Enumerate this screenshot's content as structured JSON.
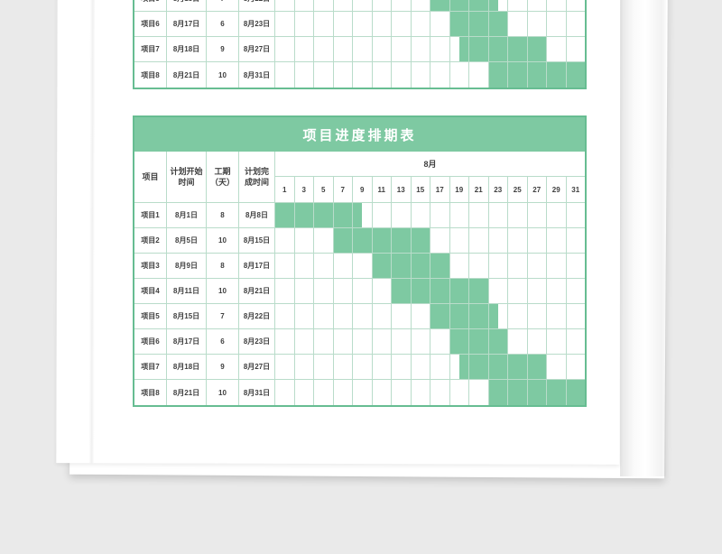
{
  "background_color": "#eaeaea",
  "theme": {
    "title_bg": "#7ec9a2",
    "title_text": "#ffffff",
    "bar_fill": "#7ec9a2",
    "grid_line": "#b9dcca",
    "outer_border": "#67bd92",
    "cell_text": "#3f3f3f"
  },
  "layout_hints": {
    "top_table_first_task_index": 4,
    "day_columns": 16
  },
  "chart_data": {
    "type": "table",
    "subtype": "gantt-schedule",
    "title": "项目进度排期表",
    "column_headers": {
      "project": "项目",
      "start": "计划开始时间",
      "duration": "工期（天）",
      "finish": "计划完成时间"
    },
    "month_label": "8月",
    "day_labels": [
      "1",
      "3",
      "5",
      "7",
      "9",
      "11",
      "13",
      "15",
      "17",
      "19",
      "21",
      "23",
      "25",
      "27",
      "29",
      "31"
    ],
    "axis": {
      "day_min": 1,
      "day_max": 31,
      "days_per_cell": 2
    },
    "tasks": [
      {
        "project": "项目1",
        "start": "8月1日",
        "duration_days": "8",
        "finish": "8月8日",
        "bar_cols": [
          0,
          4.5
        ]
      },
      {
        "project": "项目2",
        "start": "8月5日",
        "duration_days": "10",
        "finish": "8月15日",
        "bar_cols": [
          3,
          8
        ]
      },
      {
        "project": "项目3",
        "start": "8月9日",
        "duration_days": "8",
        "finish": "8月17日",
        "bar_cols": [
          5,
          9
        ]
      },
      {
        "project": "项目4",
        "start": "8月11日",
        "duration_days": "10",
        "finish": "8月21日",
        "bar_cols": [
          6,
          11
        ]
      },
      {
        "project": "项目5",
        "start": "8月15日",
        "duration_days": "7",
        "finish": "8月22日",
        "bar_cols": [
          8,
          11.5
        ]
      },
      {
        "project": "项目6",
        "start": "8月17日",
        "duration_days": "6",
        "finish": "8月23日",
        "bar_cols": [
          9,
          12
        ]
      },
      {
        "project": "项目7",
        "start": "8月18日",
        "duration_days": "9",
        "finish": "8月27日",
        "bar_cols": [
          9.5,
          14
        ]
      },
      {
        "project": "项目8",
        "start": "8月21日",
        "duration_days": "10",
        "finish": "8月31日",
        "bar_cols": [
          11,
          16
        ]
      }
    ]
  }
}
